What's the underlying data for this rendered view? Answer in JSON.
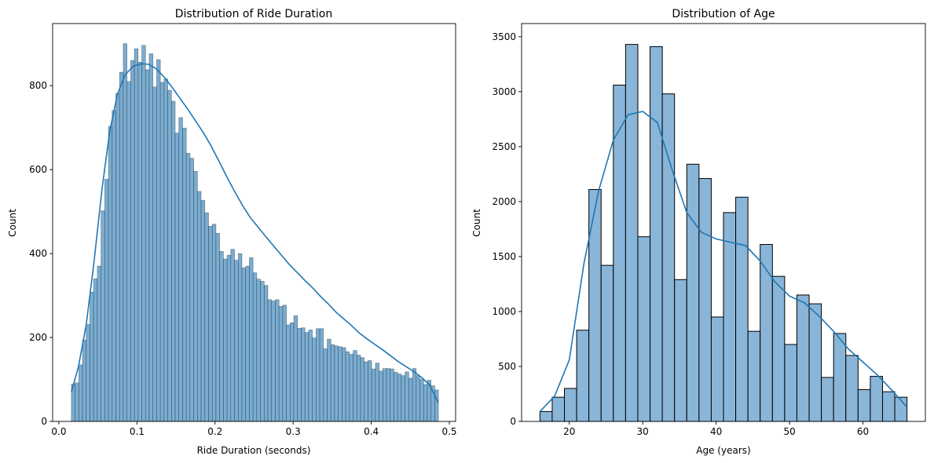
{
  "chart_data": [
    {
      "type": "histogram",
      "title": "Distribution of Ride Duration",
      "xlabel": "Ride Duration (seconds)",
      "ylabel": "Count",
      "xlim": [
        -0.008,
        0.508
      ],
      "ylim": [
        0,
        948
      ],
      "xticks": [
        0.0,
        0.1,
        0.2,
        0.3,
        0.4,
        0.5
      ],
      "xtick_labels": [
        "0.0",
        "0.1",
        "0.2",
        "0.3",
        "0.4",
        "0.5"
      ],
      "yticks": [
        0,
        200,
        400,
        600,
        800
      ],
      "ytick_labels": [
        "0",
        "200",
        "400",
        "600",
        "800"
      ],
      "bin_start": 0.016,
      "bin_end": 0.486,
      "values": [
        89,
        92,
        135,
        194,
        231,
        308,
        340,
        370,
        502,
        577,
        703,
        741,
        782,
        832,
        900,
        810,
        860,
        888,
        856,
        896,
        838,
        876,
        797,
        862,
        808,
        816,
        789,
        763,
        687,
        724,
        699,
        639,
        627,
        596,
        548,
        527,
        497,
        465,
        470,
        448,
        405,
        387,
        396,
        410,
        384,
        400,
        366,
        370,
        390,
        354,
        339,
        334,
        324,
        290,
        287,
        290,
        274,
        277,
        230,
        235,
        252,
        222,
        223,
        212,
        218,
        199,
        221,
        221,
        173,
        196,
        183,
        180,
        178,
        176,
        166,
        160,
        169,
        158,
        152,
        142,
        145,
        125,
        139,
        120,
        126,
        126,
        125,
        117,
        113,
        109,
        118,
        103,
        126,
        109,
        100,
        88,
        98,
        85,
        75
      ],
      "kde_x": [
        0.016,
        0.025,
        0.035,
        0.045,
        0.055,
        0.065,
        0.075,
        0.085,
        0.095,
        0.105,
        0.115,
        0.125,
        0.135,
        0.145,
        0.155,
        0.165,
        0.175,
        0.185,
        0.195,
        0.205,
        0.215,
        0.225,
        0.235,
        0.245,
        0.255,
        0.265,
        0.275,
        0.285,
        0.295,
        0.305,
        0.315,
        0.325,
        0.335,
        0.345,
        0.355,
        0.365,
        0.375,
        0.385,
        0.395,
        0.405,
        0.415,
        0.425,
        0.435,
        0.445,
        0.455,
        0.465,
        0.475,
        0.486
      ],
      "kde_y": [
        70,
        130,
        230,
        380,
        550,
        690,
        780,
        826,
        846,
        852,
        851,
        840,
        820,
        796,
        770,
        744,
        716,
        688,
        656,
        620,
        583,
        548,
        515,
        486,
        463,
        440,
        418,
        396,
        374,
        355,
        336,
        318,
        298,
        280,
        260,
        244,
        228,
        210,
        196,
        183,
        170,
        156,
        142,
        130,
        118,
        104,
        86,
        44
      ],
      "bar_color": "#7aadd2",
      "line_color": "#1f77b4"
    },
    {
      "type": "histogram",
      "title": "Distribution of Age",
      "xlabel": "Age (years)",
      "ylabel": "Count",
      "xlim": [
        13.5,
        68.5
      ],
      "ylim": [
        0,
        3620
      ],
      "xticks": [
        20,
        30,
        40,
        50,
        60
      ],
      "xtick_labels": [
        "20",
        "30",
        "40",
        "50",
        "60"
      ],
      "yticks": [
        0,
        500,
        1000,
        1500,
        2000,
        2500,
        3000,
        3500
      ],
      "ytick_labels": [
        "0",
        "500",
        "1000",
        "1500",
        "2000",
        "2500",
        "3000",
        "3500"
      ],
      "bin_start": 16,
      "bin_end": 66,
      "values": [
        90,
        220,
        300,
        830,
        2110,
        1420,
        3060,
        3430,
        1680,
        3410,
        2980,
        1290,
        2340,
        2210,
        950,
        1900,
        2040,
        820,
        1610,
        1320,
        700,
        1150,
        1070,
        400,
        800,
        600,
        290,
        410,
        270,
        220
      ],
      "kde_x": [
        16,
        18,
        20,
        22,
        24,
        26,
        28,
        30,
        32,
        34,
        36,
        38,
        40,
        42,
        44,
        46,
        48,
        50,
        52,
        54,
        56,
        58,
        60,
        62,
        64,
        66
      ],
      "kde_y": [
        90,
        230,
        560,
        1440,
        2100,
        2560,
        2790,
        2820,
        2720,
        2290,
        1900,
        1720,
        1660,
        1630,
        1600,
        1460,
        1270,
        1140,
        1080,
        960,
        820,
        660,
        540,
        420,
        280,
        130
      ],
      "bar_color": "#89b5d8",
      "line_color": "#1f77b4"
    }
  ]
}
